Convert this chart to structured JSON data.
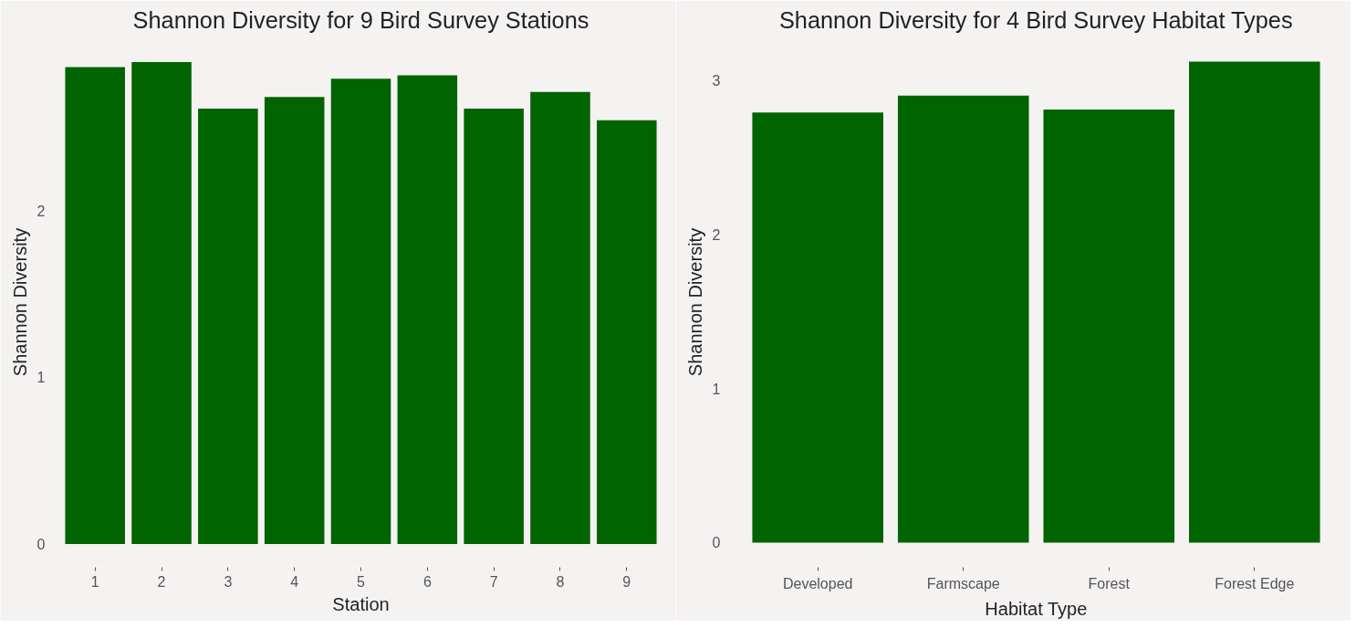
{
  "chart_data": [
    {
      "type": "bar",
      "title": "Shannon Diversity for 9 Bird Survey Stations",
      "xlabel": "Station",
      "ylabel": "Shannon Diversity",
      "categories": [
        "1",
        "2",
        "3",
        "4",
        "5",
        "6",
        "7",
        "8",
        "9"
      ],
      "values": [
        2.86,
        2.89,
        2.61,
        2.68,
        2.79,
        2.81,
        2.61,
        2.71,
        2.54
      ],
      "color": "#006400",
      "ylim": [
        -0.14,
        3.04
      ],
      "yticks": [
        0,
        1,
        2
      ],
      "grid": false
    },
    {
      "type": "bar",
      "title": "Shannon Diversity for 4 Bird Survey Habitat Types",
      "xlabel": "Habitat Type",
      "ylabel": "Shannon Diversity",
      "categories": [
        "Developed",
        "Farmscape",
        "Forest",
        "Forest Edge"
      ],
      "values": [
        2.79,
        2.9,
        2.81,
        3.12
      ],
      "color": "#006400",
      "ylim": [
        -0.16,
        3.28
      ],
      "yticks": [
        0,
        1,
        2,
        3
      ],
      "grid": false
    }
  ]
}
